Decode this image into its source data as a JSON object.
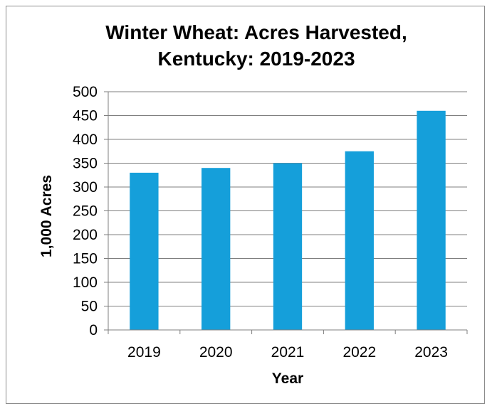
{
  "chart_data": {
    "type": "bar",
    "title": "Winter Wheat: Acres Harvested,",
    "subtitle": "Kentucky: 2019-2023",
    "xlabel": "Year",
    "ylabel": "1,000 Acres",
    "categories": [
      "2019",
      "2020",
      "2021",
      "2022",
      "2023"
    ],
    "values": [
      330,
      340,
      350,
      375,
      460
    ],
    "ylim": [
      0,
      500
    ],
    "yticks": [
      0,
      50,
      100,
      150,
      200,
      250,
      300,
      350,
      400,
      450,
      500
    ],
    "grid": true,
    "legend": "none",
    "bar_color": "#159fda",
    "grid_color": "#7f7f7f",
    "border_color": "#8c8c8c"
  }
}
